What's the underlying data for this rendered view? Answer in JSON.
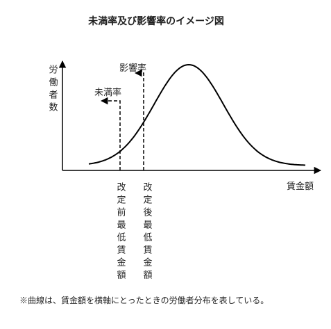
{
  "title": "未満率及び影響率のイメージ図",
  "y_axis_label": "労働者数",
  "x_axis_label": "賃金額",
  "influence_rate_label": "影響率",
  "below_rate_label": "未満率",
  "before_label": "改定前最低賃金額",
  "after_label": "改定後最低賃金額",
  "footnote": "※曲線は、賃金額を横軸にとったときの労働者分布を表している。"
}
